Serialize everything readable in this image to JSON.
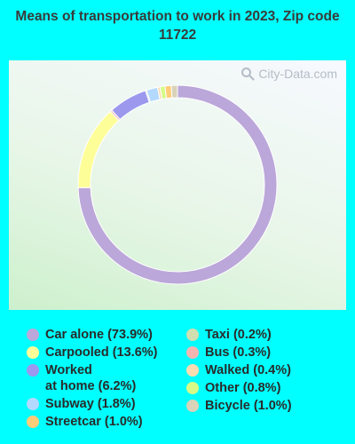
{
  "title": "Means of transportation to work in 2023, Zip code 11722",
  "watermark": "City-Data.com",
  "chart_data": {
    "type": "pie",
    "donut": true,
    "categories": [
      "Car alone",
      "Carpooled",
      "Worked at home",
      "Subway",
      "Streetcar",
      "Taxi",
      "Bus",
      "Walked",
      "Other",
      "Bicycle"
    ],
    "values": [
      73.9,
      13.6,
      6.2,
      1.8,
      1.0,
      0.2,
      0.3,
      0.4,
      0.8,
      1.0
    ],
    "colors": [
      "#bba7d9",
      "#fefe99",
      "#9b98ee",
      "#b3d9ff",
      "#ffcc77",
      "#cfdfb0",
      "#f2b5b0",
      "#fcdcb0",
      "#d7fa87",
      "#d9d3b9"
    ],
    "draw_order": [
      0,
      1,
      6,
      2,
      5,
      3,
      7,
      8,
      4,
      9
    ],
    "legend_placement": "bottom"
  },
  "legend": {
    "left": [
      {
        "label": "Car alone (73.9%)",
        "color": "#bba7d9"
      },
      {
        "label": "Carpooled (13.6%)",
        "color": "#fefe99"
      },
      {
        "label": "Worked\nat home (6.2%)",
        "color": "#9b98ee"
      },
      {
        "label": "Subway (1.8%)",
        "color": "#b3d9ff"
      },
      {
        "label": "Streetcar (1.0%)",
        "color": "#ffcc77"
      }
    ],
    "right": [
      {
        "label": "Taxi (0.2%)",
        "color": "#cfdfb0"
      },
      {
        "label": "Bus (0.3%)",
        "color": "#f2b5b0"
      },
      {
        "label": "Walked (0.4%)",
        "color": "#fcdcb0"
      },
      {
        "label": "Other (0.8%)",
        "color": "#d7fa87"
      },
      {
        "label": "Bicycle (1.0%)",
        "color": "#d9d3b9"
      }
    ]
  }
}
